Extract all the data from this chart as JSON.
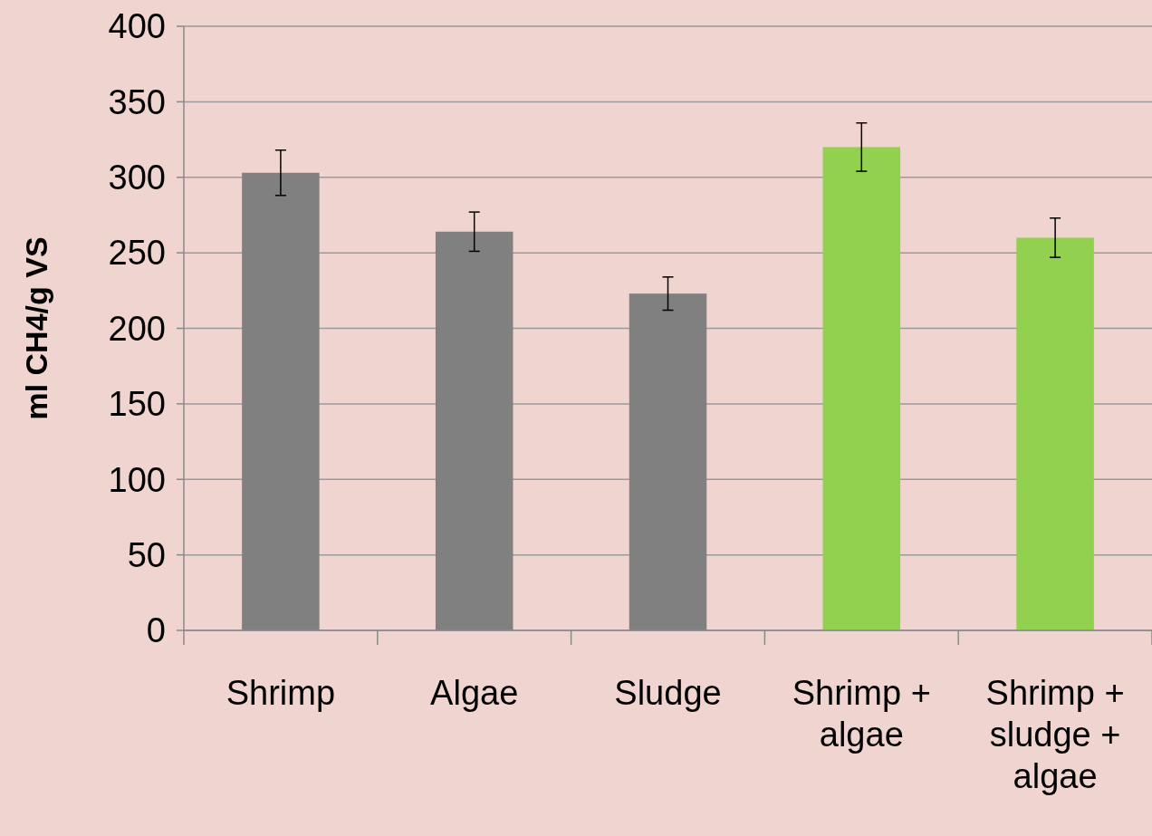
{
  "chart_data": {
    "type": "bar",
    "ylabel": "ml CH4/g VS",
    "categories": [
      "Shrimp",
      "Algae",
      "Sludge",
      "Shrimp + algae",
      "Shrimp + sludge + algae"
    ],
    "values": [
      303,
      264,
      223,
      320,
      260
    ],
    "errors": [
      15,
      13,
      11,
      16,
      13
    ],
    "colors": [
      "#808080",
      "#808080",
      "#808080",
      "#92d050",
      "#92d050"
    ],
    "ylim": [
      0,
      400
    ],
    "yticks": [
      0,
      50,
      100,
      150,
      200,
      250,
      300,
      350,
      400
    ],
    "grid": "y"
  }
}
